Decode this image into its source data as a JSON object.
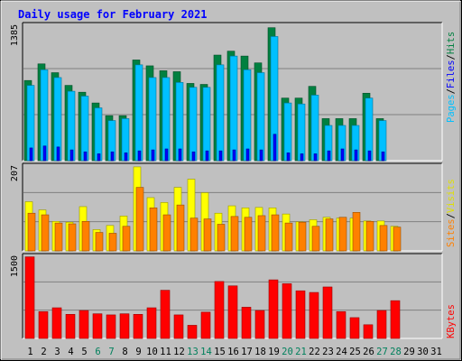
{
  "chart_data": {
    "title": "Daily usage for February 2021",
    "type": "bar",
    "categories": [
      "1",
      "2",
      "3",
      "4",
      "5",
      "6",
      "7",
      "8",
      "9",
      "10",
      "11",
      "12",
      "13",
      "14",
      "15",
      "16",
      "17",
      "18",
      "19",
      "20",
      "21",
      "22",
      "23",
      "24",
      "25",
      "26",
      "27",
      "28",
      "29",
      "30",
      "31"
    ],
    "weekend_days": [
      "6",
      "7",
      "13",
      "14",
      "20",
      "21",
      "27",
      "28"
    ],
    "panels": [
      {
        "id": "hits_files_pages",
        "ymax_label": "1385",
        "ymax": 1385,
        "grid": true,
        "series": [
          {
            "name": "Hits",
            "color": "#008040",
            "values": [
              820,
              990,
              900,
              770,
              700,
              590,
              460,
              460,
              1030,
              970,
              920,
              910,
              790,
              780,
              1080,
              1120,
              1070,
              1000,
              1360,
              640,
              640,
              760,
              430,
              430,
              430,
              690,
              430,
              null,
              null,
              null,
              null
            ]
          },
          {
            "name": "Files",
            "color": "#00c0ff",
            "values": [
              770,
              930,
              850,
              710,
              660,
              540,
              410,
              430,
              980,
              850,
              850,
              800,
              750,
              750,
              980,
              1070,
              930,
              900,
              1270,
              590,
              580,
              670,
              360,
              360,
              360,
              640,
              410,
              null,
              null,
              null,
              null
            ]
          },
          {
            "name": "Pages",
            "color": "#0000ff",
            "values": [
              130,
              150,
              140,
              110,
              90,
              70,
              90,
              80,
              100,
              110,
              120,
              120,
              90,
              100,
              100,
              110,
              120,
              110,
              270,
              80,
              70,
              70,
              100,
              120,
              110,
              100,
              90,
              null,
              null,
              null,
              null
            ]
          }
        ]
      },
      {
        "id": "visits_sites",
        "ymax_label": "207",
        "ymax": 207,
        "grid": true,
        "series": [
          {
            "name": "Visits",
            "color": "#ffff00",
            "values": [
              120,
              100,
              72,
              70,
              108,
              52,
              62,
              85,
              205,
              130,
              118,
              155,
              175,
              142,
              92,
              110,
              105,
              106,
              105,
              90,
              71,
              76,
              82,
              80,
              80,
              73,
              73,
              60,
              null,
              null,
              null
            ]
          },
          {
            "name": "Sites",
            "color": "#ff8000",
            "values": [
              92,
              88,
              68,
              66,
              72,
              45,
              43,
              60,
              155,
              105,
              88,
              112,
              80,
              78,
              65,
              84,
              82,
              86,
              88,
              68,
              70,
              60,
              78,
              82,
              94,
              72,
              62,
              58,
              null,
              null,
              null
            ]
          }
        ]
      },
      {
        "id": "kbytes",
        "ymax_label": "1500",
        "ymax": 1500,
        "grid": true,
        "series": [
          {
            "name": "KBytes",
            "color": "#ff0000",
            "values": [
              1490,
              490,
              560,
              440,
              510,
              450,
              430,
              450,
              440,
              560,
              880,
              430,
              240,
              480,
              1040,
              960,
              570,
              510,
              1070,
              1000,
              870,
              840,
              940,
              490,
              380,
              250,
              510,
              690,
              null,
              null,
              null
            ]
          }
        ]
      }
    ],
    "legend_labels": {
      "pages": "Pages",
      "files": "Files",
      "hits": "Hits",
      "sites": "Sites",
      "visits": "Visits",
      "kbytes": "KBytes",
      "sep": "/"
    },
    "colors": {
      "background": "#c0c0c0",
      "plot_background": "#c0c0c0",
      "title": "#0000ff",
      "weekday_label": "#000000",
      "weekend_label": "#00805c"
    }
  }
}
